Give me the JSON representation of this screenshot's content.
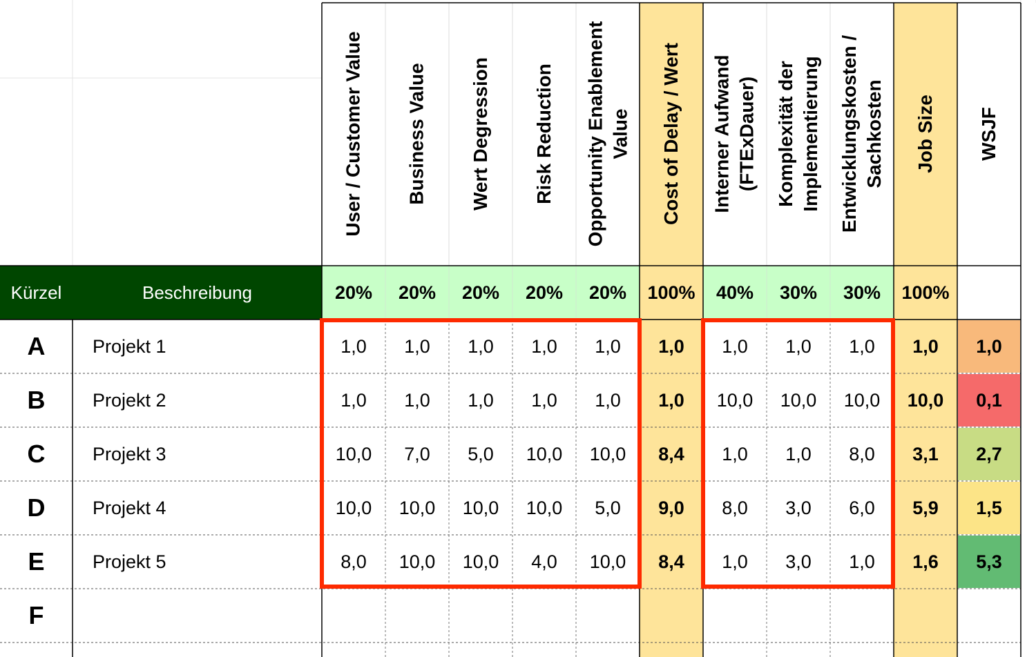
{
  "header_labels": {
    "kuerzel": "Kürzel",
    "beschreibung": "Beschreibung"
  },
  "columns": [
    {
      "name": "User / Customer Value",
      "weight": "20%"
    },
    {
      "name": "Business Value",
      "weight": "20%"
    },
    {
      "name": "Wert Degression",
      "weight": "20%"
    },
    {
      "name": "Risk Reduction",
      "weight": "20%"
    },
    {
      "name": "Opportunity Enablement Value",
      "lines": [
        "Opportunity Enablement",
        "Value"
      ],
      "weight": "20%"
    },
    {
      "name": "Cost of Delay / Wert",
      "weight": "100%"
    },
    {
      "name": "Interner Aufwand (FTExDauer)",
      "lines": [
        "Interner Aufwand",
        "(FTExDauer)"
      ],
      "weight": "40%"
    },
    {
      "name": "Komplexität der Implementierung",
      "lines": [
        "Komplexität der",
        "Implementierung"
      ],
      "weight": "30%"
    },
    {
      "name": "Entwicklungskosten / Sachkosten",
      "lines": [
        "Entwicklungskosten /",
        "Sachkosten"
      ],
      "weight": "30%"
    },
    {
      "name": "Job Size",
      "weight": "100%"
    },
    {
      "name": "WSJF",
      "weight": ""
    }
  ],
  "rows": [
    {
      "code": "A",
      "desc": "Projekt 1",
      "values": [
        "1,0",
        "1,0",
        "1,0",
        "1,0",
        "1,0",
        "1,0",
        "1,0",
        "1,0",
        "1,0",
        "1,0",
        "1,0"
      ],
      "wsjf_color": "#f8b97b"
    },
    {
      "code": "B",
      "desc": "Projekt 2",
      "values": [
        "1,0",
        "1,0",
        "1,0",
        "1,0",
        "1,0",
        "1,0",
        "10,0",
        "10,0",
        "10,0",
        "10,0",
        "0,1"
      ],
      "wsjf_color": "#f56a6a"
    },
    {
      "code": "C",
      "desc": "Projekt 3",
      "values": [
        "10,0",
        "7,0",
        "5,0",
        "10,0",
        "10,0",
        "8,4",
        "1,0",
        "1,0",
        "8,0",
        "3,1",
        "2,7"
      ],
      "wsjf_color": "#c8dc84"
    },
    {
      "code": "D",
      "desc": "Projekt 4",
      "values": [
        "10,0",
        "10,0",
        "10,0",
        "10,0",
        "5,0",
        "9,0",
        "8,0",
        "3,0",
        "6,0",
        "5,9",
        "1,5"
      ],
      "wsjf_color": "#fce487"
    },
    {
      "code": "E",
      "desc": "Projekt 5",
      "values": [
        "8,0",
        "10,0",
        "10,0",
        "4,0",
        "10,0",
        "8,4",
        "1,0",
        "3,0",
        "1,0",
        "1,6",
        "5,3"
      ],
      "wsjf_color": "#62bb73"
    },
    {
      "code": "F",
      "desc": "",
      "values": [
        "",
        "",
        "",
        "",
        "",
        "",
        "",
        "",
        "",
        "",
        ""
      ],
      "wsjf_color": ""
    }
  ],
  "colors": {
    "header_green": "#004600",
    "weight_green": "#c8ffc8",
    "highlight_yellow": "#fee49a",
    "red_frame": "#fe2a00"
  }
}
